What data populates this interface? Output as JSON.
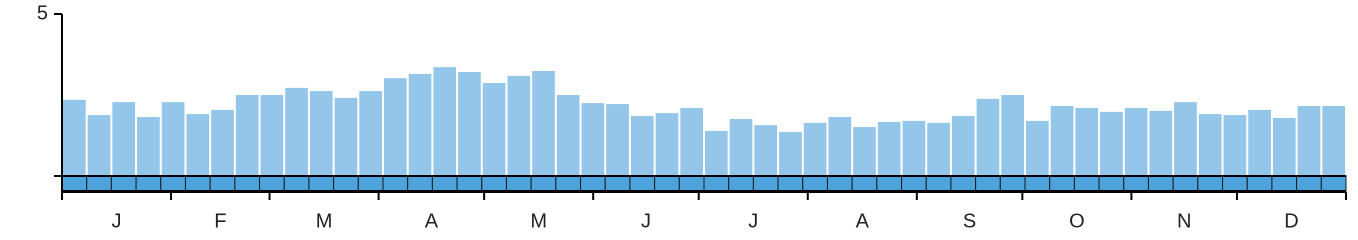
{
  "chart_data": {
    "type": "bar",
    "color": "#93c6e8",
    "categories": [
      null,
      null,
      null,
      null,
      null,
      null,
      null,
      null,
      null,
      null,
      null,
      null,
      null,
      null,
      null,
      null,
      null,
      null,
      null,
      null,
      null,
      null,
      null,
      null,
      null,
      null,
      null,
      null,
      null,
      null,
      null,
      null,
      null,
      null,
      null,
      null,
      null,
      null,
      null,
      null,
      null,
      null,
      null,
      null,
      null,
      null,
      null,
      null,
      null,
      null,
      null,
      null
    ],
    "values": [
      2.35,
      1.88,
      2.28,
      1.82,
      2.28,
      1.91,
      2.04,
      2.5,
      2.5,
      2.72,
      2.62,
      2.41,
      2.62,
      3.02,
      3.15,
      3.36,
      3.21,
      2.87,
      3.09,
      3.24,
      2.5,
      2.25,
      2.22,
      1.85,
      1.94,
      2.1,
      1.39,
      1.76,
      1.57,
      1.36,
      1.64,
      1.82,
      1.51,
      1.67,
      1.7,
      1.64,
      1.85,
      2.38,
      2.5,
      1.7,
      2.16,
      2.1,
      1.98,
      2.1,
      2.01,
      2.28,
      1.91,
      1.88,
      2.04,
      1.79,
      2.16,
      2.16
    ],
    "ylim": [
      0,
      5
    ],
    "yticks": [
      5
    ],
    "months": [
      "J",
      "F",
      "M",
      "A",
      "M",
      "J",
      "J",
      "A",
      "S",
      "O",
      "N",
      "D"
    ]
  }
}
